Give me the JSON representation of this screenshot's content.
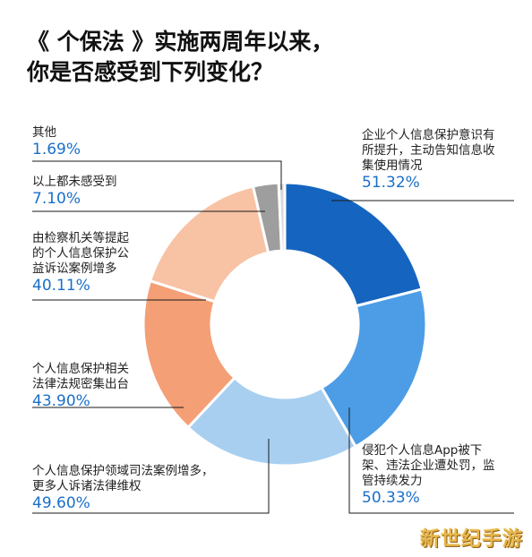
{
  "title_line1": "《 个保法 》实施两周年以来，",
  "title_line2": "你是否感受到下列变化？",
  "chart_data": {
    "type": "donut",
    "series": [
      {
        "label": "企业个人信息保护意识有\n所提升，主动告知信息收\n集使用情况",
        "value_text": "51.32%",
        "value": 51.32,
        "color": "#1565c0"
      },
      {
        "label": "侵犯个人信息App被下\n架、违法企业遭处罚，监\n管持续发力",
        "value_text": "50.33%",
        "value": 50.33,
        "color": "#4c9de6"
      },
      {
        "label": "个人信息保护领域司法案例增多，\n更多人诉诸法律维权",
        "value_text": "49.60%",
        "value": 49.6,
        "color": "#a8cff0"
      },
      {
        "label": "个人信息保护相关\n法律法规密集出台",
        "value_text": "43.90%",
        "value": 43.9,
        "color": "#f49f76"
      },
      {
        "label": "由检察机关等提起\n的个人信息保护公\n益诉讼案例增多",
        "value_text": "40.11%",
        "value": 40.11,
        "color": "#f8c2a4"
      },
      {
        "label": "以上都未感受到",
        "value_text": "7.10%",
        "value": 7.1,
        "color": "#9e9e9e"
      },
      {
        "label": "其他",
        "value_text": "1.69%",
        "value": 1.69,
        "color": "#d9d9d9"
      }
    ]
  },
  "watermark": "新世纪手游"
}
